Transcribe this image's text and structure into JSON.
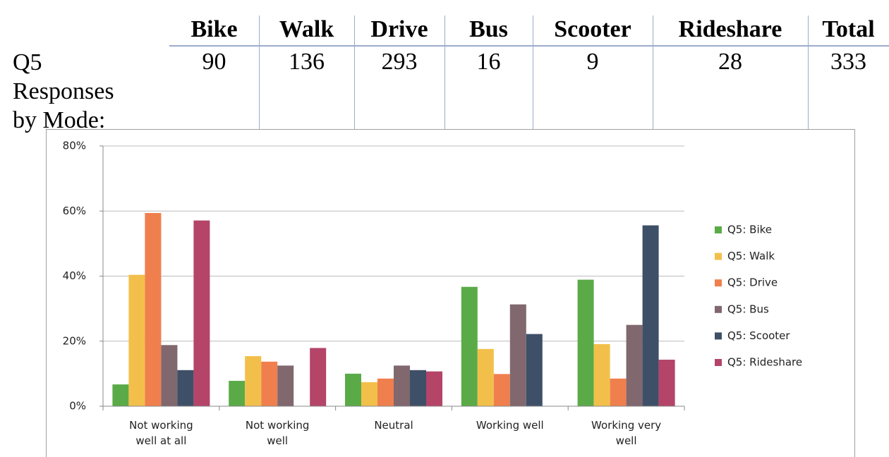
{
  "table": {
    "columns": [
      "Bike",
      "Walk",
      "Drive",
      "Bus",
      "Scooter",
      "Rideshare",
      "Total"
    ],
    "row_label": "Q5 Responses by Mode:",
    "values": [
      90,
      136,
      293,
      16,
      9,
      28,
      333
    ]
  },
  "chart_data": {
    "type": "bar",
    "categories": [
      "Not working well at all",
      "Not working well",
      "Neutral",
      "Working well",
      "Working very well"
    ],
    "series": [
      {
        "name": "Q5: Bike",
        "color": "#5aab47",
        "values": [
          6.7,
          7.8,
          10.0,
          36.7,
          38.9
        ]
      },
      {
        "name": "Q5: Walk",
        "color": "#f2c04a",
        "values": [
          40.4,
          15.4,
          7.4,
          17.6,
          19.1
        ]
      },
      {
        "name": "Q5: Drive",
        "color": "#f07f4e",
        "values": [
          59.4,
          13.7,
          8.5,
          9.9,
          8.5
        ]
      },
      {
        "name": "Q5: Bus",
        "color": "#80686e",
        "values": [
          18.8,
          12.5,
          12.5,
          31.3,
          25.0
        ]
      },
      {
        "name": "Q5: Scooter",
        "color": "#3e5068",
        "values": [
          11.1,
          0,
          11.1,
          22.2,
          55.6
        ]
      },
      {
        "name": "Q5: Rideshare",
        "color": "#b44468",
        "values": [
          57.1,
          17.9,
          10.7,
          0,
          14.3
        ]
      }
    ],
    "ylim": [
      0,
      80
    ],
    "yticks": [
      {
        "value": 0,
        "label": "0%"
      },
      {
        "value": 20,
        "label": "20%"
      },
      {
        "value": 40,
        "label": "40%"
      },
      {
        "value": 60,
        "label": "60%"
      },
      {
        "value": 80,
        "label": "80%"
      }
    ],
    "grid": true,
    "legend": "right"
  }
}
